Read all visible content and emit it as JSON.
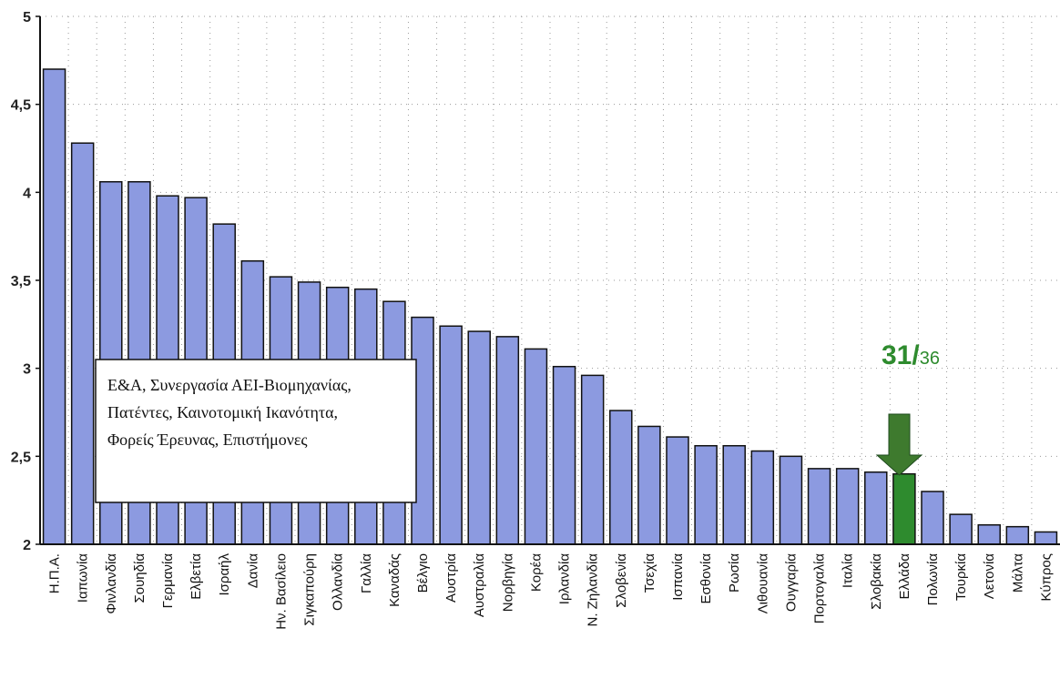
{
  "chart_data": {
    "type": "bar",
    "categories": [
      "Η.Π.Α.",
      "Ιαπωνία",
      "Φινλανδία",
      "Σουηδία",
      "Γερμανία",
      "Ελβετία",
      "Ισραήλ",
      "Δανία",
      "Ην. Βασίλειο",
      "Σιγκαπούρη",
      "Ολλανδία",
      "Γαλλία",
      "Καναδάς",
      "Βέλγιο",
      "Αυστρία",
      "Αυστραλία",
      "Νορβηγία",
      "Κορέα",
      "Ιρλανδία",
      "Ν. Ζηλανδία",
      "Σλοβενία",
      "Τσεχία",
      "Ισπανία",
      "Εσθονία",
      "Ρωσία",
      "Λιθουανία",
      "Ουγγαρία",
      "Πορτογαλία",
      "Ιταλία",
      "Σλοβακία",
      "Ελλάδα",
      "Πολωνία",
      "Τουρκία",
      "Λετονία",
      "Μάλτα",
      "Κύπρος"
    ],
    "values": [
      4.7,
      4.28,
      4.06,
      4.06,
      3.98,
      3.97,
      3.82,
      3.61,
      3.52,
      3.49,
      3.46,
      3.45,
      3.38,
      3.29,
      3.24,
      3.21,
      3.18,
      3.11,
      3.01,
      2.96,
      2.76,
      2.67,
      2.61,
      2.56,
      2.56,
      2.53,
      2.5,
      2.43,
      2.43,
      2.41,
      2.4,
      2.3,
      2.17,
      2.11,
      2.1,
      2.07
    ],
    "highlight_index": 30,
    "ylim": [
      2,
      5
    ],
    "yticks": [
      "2",
      "2,5",
      "3",
      "3,5",
      "4",
      "4,5",
      "5"
    ],
    "ytick_values": [
      2,
      2.5,
      3,
      3.5,
      4,
      4.5,
      5
    ],
    "grid": true,
    "title": "",
    "xlabel": "",
    "ylabel": "",
    "colors": {
      "bar": "#8c9ae0",
      "highlight": "#2e8b2e",
      "arrow": "#3e7a2e",
      "grid": "#9a9a9a",
      "rank_text": "#2e8b2e"
    },
    "annotation": {
      "rank_main": "31/",
      "rank_sub": "36",
      "arrow_icon": "down-arrow-icon"
    }
  },
  "note": {
    "lines": [
      "Ε&Α, Συνεργασία ΑΕΙ-Βιομηχανίας,",
      "Πατέντες, Καινοτομική Ικανότητα,",
      "Φορείς Έρευνας, Επιστήμονες"
    ]
  }
}
